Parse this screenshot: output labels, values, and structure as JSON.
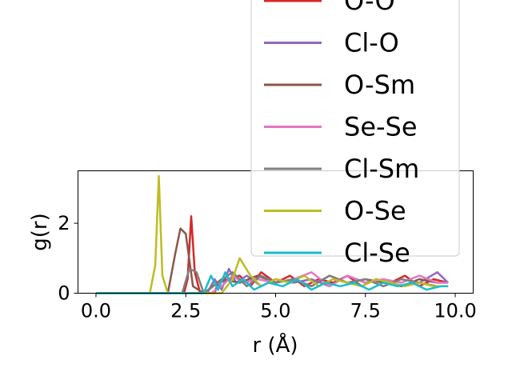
{
  "chart_data": {
    "type": "line",
    "xlabel": "r (Å)",
    "ylabel": "g(r)",
    "xlim": [
      -0.5,
      10.5
    ],
    "ylim": [
      0,
      3.5
    ],
    "xticks": [
      0.0,
      2.5,
      5.0,
      7.5,
      10.0
    ],
    "xtick_labels": [
      "0.0",
      "2.5",
      "5.0",
      "7.5",
      "10.0"
    ],
    "yticks": [
      0,
      2
    ],
    "ytick_labels": [
      "0",
      "2"
    ],
    "grid": false,
    "legend_position": "upper-right, extending above the axes",
    "series": [
      {
        "name": "O-O",
        "color": "#d62728",
        "x": [
          0,
          2.3,
          2.45,
          2.55,
          2.65,
          2.75,
          2.9,
          3.3,
          3.4,
          4.0,
          4.3,
          4.6,
          5.0,
          5.4,
          5.8,
          6.2,
          6.6,
          7.0,
          7.4,
          7.8,
          8.2,
          8.6,
          9.0,
          9.4,
          9.8
        ],
        "y": [
          0,
          0,
          0,
          0.4,
          2.2,
          0.6,
          0,
          0,
          0.3,
          0.5,
          0.2,
          0.6,
          0.3,
          0.5,
          0.2,
          0.4,
          0.3,
          0.5,
          0.2,
          0.4,
          0.3,
          0.5,
          0.2,
          0.4,
          0.3
        ]
      },
      {
        "name": "Cl-O",
        "color": "#9467bd",
        "x": [
          0,
          3.1,
          3.3,
          3.5,
          3.7,
          3.9,
          4.2,
          4.6,
          5.0,
          5.5,
          6.0,
          6.5,
          7.0,
          7.5,
          8.0,
          8.5,
          9.0,
          9.5,
          9.8
        ],
        "y": [
          0,
          0,
          0.4,
          0.1,
          0.7,
          0.3,
          0.5,
          0.2,
          0.4,
          0.3,
          0.4,
          0.2,
          0.5,
          0.3,
          0.4,
          0.2,
          0.3,
          0.6,
          0.3
        ]
      },
      {
        "name": "O-Sm",
        "color": "#8c564b",
        "x": [
          0,
          2.0,
          2.2,
          2.35,
          2.5,
          2.7,
          3.0,
          3.5,
          4.0,
          4.5,
          5.0,
          5.5,
          6.0,
          6.5,
          7.0,
          7.5,
          8.0,
          8.5,
          9.0,
          9.5,
          9.8
        ],
        "y": [
          0,
          0,
          1.1,
          1.85,
          1.7,
          0.2,
          0,
          0.4,
          0.3,
          0.5,
          0.3,
          0.4,
          0.2,
          0.5,
          0.3,
          0.4,
          0.3,
          0.2,
          0.4,
          0.3,
          0.3
        ]
      },
      {
        "name": "Se-Se",
        "color": "#e377c2",
        "x": [
          0,
          3.2,
          3.5,
          3.8,
          4.1,
          4.5,
          5.0,
          5.5,
          6.0,
          6.5,
          7.0,
          7.5,
          8.0,
          8.5,
          9.0,
          9.5,
          9.8
        ],
        "y": [
          0,
          0,
          0.2,
          0.5,
          0.3,
          0.4,
          0.3,
          0.4,
          0.6,
          0.2,
          0.5,
          0.3,
          0.4,
          0.3,
          0.5,
          0.3,
          0.3
        ]
      },
      {
        "name": "Cl-Sm",
        "color": "#7f7f7f",
        "x": [
          0,
          2.4,
          2.6,
          2.8,
          3.0,
          3.4,
          3.8,
          4.2,
          4.6,
          5.0,
          5.5,
          6.0,
          6.5,
          7.0,
          7.5,
          8.0,
          8.5,
          9.0,
          9.5,
          9.8
        ],
        "y": [
          0,
          0,
          0.7,
          0.6,
          0,
          0.3,
          0.6,
          0.2,
          0.5,
          0.3,
          0.4,
          0.2,
          0.5,
          0.3,
          0.4,
          0.2,
          0.4,
          0.3,
          0.2,
          0.2
        ]
      },
      {
        "name": "O-Se",
        "color": "#bcbd22",
        "x": [
          0,
          1.5,
          1.65,
          1.75,
          1.85,
          2.0,
          3.5,
          3.8,
          4.0,
          4.3,
          4.6,
          5.0,
          5.4,
          5.8,
          6.2,
          6.6,
          7.0,
          7.4,
          7.8,
          8.2,
          8.6,
          9.0,
          9.4,
          9.8
        ],
        "y": [
          0,
          0,
          0.8,
          3.35,
          0.5,
          0,
          0,
          0.4,
          1.0,
          0.5,
          0.2,
          0.4,
          0.3,
          0.5,
          0.2,
          0.4,
          0.3,
          0.2,
          0.4,
          0.3,
          0.2,
          0.3,
          0.2,
          0.2
        ]
      },
      {
        "name": "Cl-Se",
        "color": "#17becf",
        "x": [
          0,
          3.0,
          3.2,
          3.4,
          3.6,
          3.8,
          4.1,
          4.4,
          4.8,
          5.2,
          5.6,
          6.0,
          6.4,
          6.8,
          7.2,
          7.6,
          8.0,
          8.4,
          8.8,
          9.2,
          9.6,
          9.8
        ],
        "y": [
          0,
          0,
          0.5,
          0.1,
          0.6,
          0.2,
          0.4,
          0.1,
          0.3,
          0.2,
          0.4,
          0.1,
          0.3,
          0.2,
          0.3,
          0.1,
          0.3,
          0.2,
          0.3,
          0.1,
          0.2,
          0.2
        ]
      }
    ]
  }
}
